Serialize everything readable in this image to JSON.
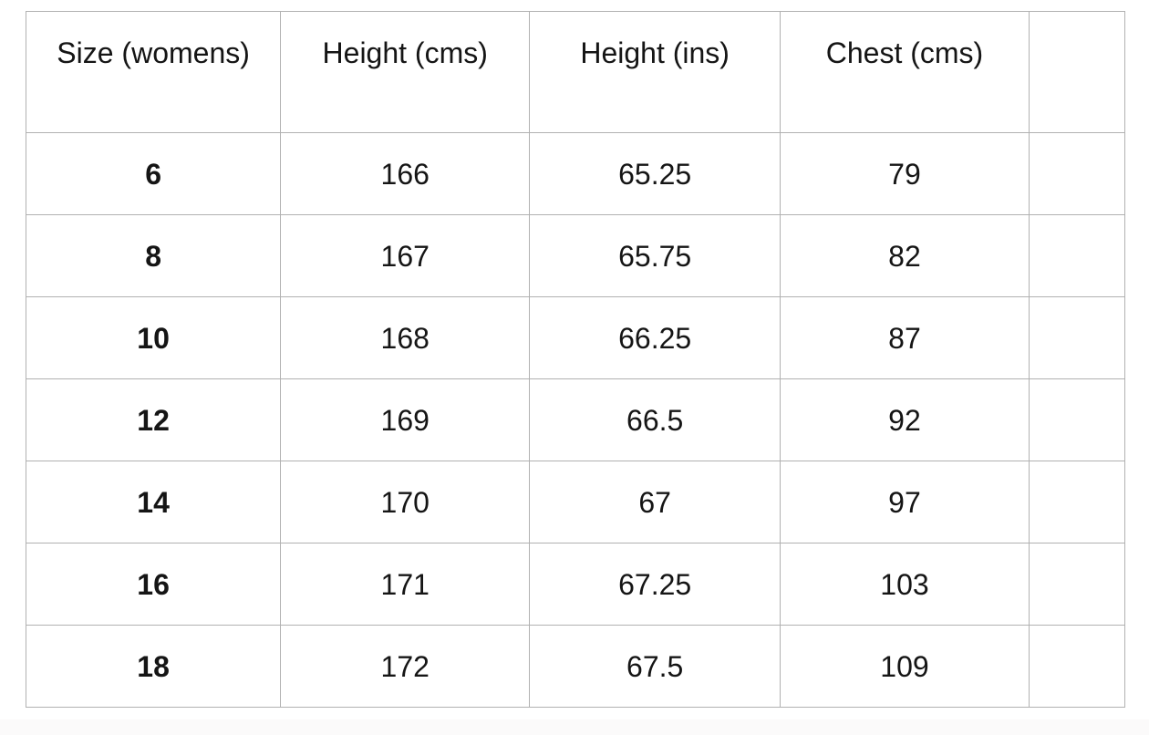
{
  "colors": {
    "background": "#ffffff",
    "grid_line": "#b1b1b1",
    "text": "#151515",
    "bottom_strip": "#fbfafa"
  },
  "chart_data": {
    "type": "table",
    "columns": [
      "Size (womens)",
      "Height (cms)",
      "Height (ins)",
      "Chest (cms)"
    ],
    "rows": [
      [
        "6",
        "166",
        "65.25",
        "79"
      ],
      [
        "8",
        "167",
        "65.75",
        "82"
      ],
      [
        "10",
        "168",
        "66.25",
        "87"
      ],
      [
        "12",
        "169",
        "66.5",
        "92"
      ],
      [
        "14",
        "170",
        "67",
        "97"
      ],
      [
        "16",
        "171",
        "67.25",
        "103"
      ],
      [
        "18",
        "172",
        "67.5",
        "109"
      ]
    ]
  }
}
